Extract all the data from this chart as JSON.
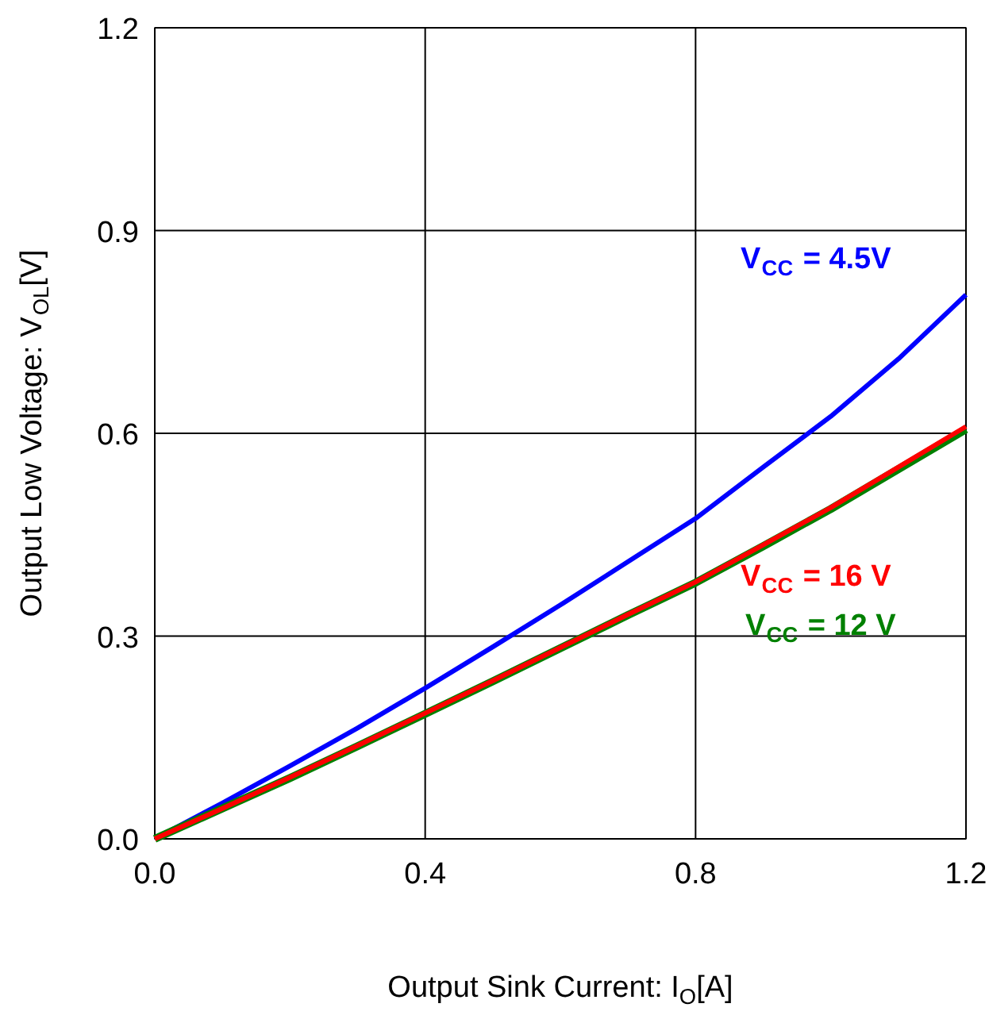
{
  "chart_data": {
    "type": "line",
    "xlabel": "Output Sink Current: I$_{O}$[A]",
    "ylabel": "Output Low Voltage: V$_{OL}$[V]",
    "x": [
      0,
      0.1,
      0.2,
      0.3,
      0.4,
      0.5,
      0.6,
      0.7,
      0.8,
      0.9,
      1.0,
      1.1,
      1.2
    ],
    "series": [
      {
        "name": "V$_{CC}$ = 4.5V",
        "color": "#0000ff",
        "values": [
          0,
          0.053,
          0.108,
          0.164,
          0.223,
          0.284,
          0.346,
          0.41,
          0.474,
          0.55,
          0.625,
          0.71,
          0.805
        ]
      },
      {
        "name": "V$_{CC}$ = 12 V",
        "color": "#008000",
        "values": [
          0,
          0.045,
          0.09,
          0.137,
          0.185,
          0.233,
          0.282,
          0.331,
          0.379,
          0.433,
          0.488,
          0.547,
          0.606
        ]
      },
      {
        "name": "V$_{CC}$ = 16 V",
        "color": "#ff0000",
        "values": [
          0,
          0.045,
          0.091,
          0.138,
          0.186,
          0.234,
          0.283,
          0.332,
          0.38,
          0.435,
          0.49,
          0.55,
          0.61
        ]
      }
    ],
    "xlim": [
      0,
      1.2
    ],
    "ylim": [
      0,
      1.2
    ],
    "xticks": [
      {
        "value": 0,
        "label": "0.0"
      },
      0.4,
      0.8,
      1.2
    ],
    "yticks": [
      {
        "value": 0,
        "label": "0.0"
      },
      0.3,
      0.6,
      0.9,
      1.2
    ],
    "grid": true,
    "marker": "none",
    "line_style": "solid"
  }
}
